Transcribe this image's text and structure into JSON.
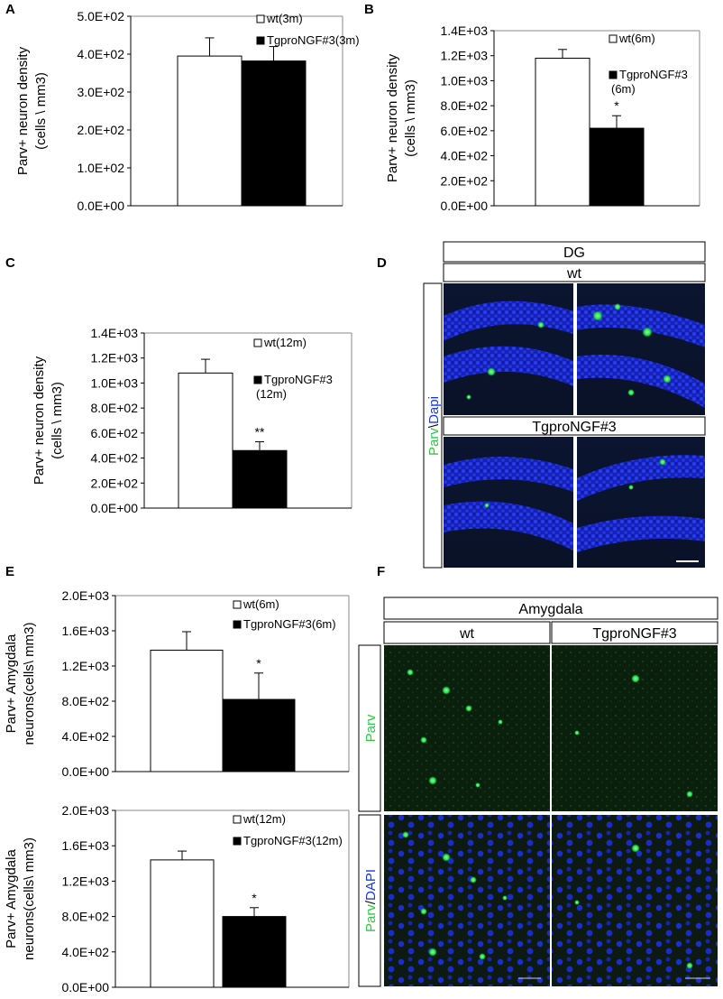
{
  "panels": {
    "A": "A",
    "B": "B",
    "C": "C",
    "D": "D",
    "E": "E",
    "F": "F"
  },
  "chart_data": [
    {
      "id": "A",
      "type": "bar",
      "ylabel": [
        "Parv+ neuron density",
        "(cells \\ mm3)"
      ],
      "ylim": [
        0,
        500
      ],
      "yticks": [
        "0.0E+00",
        "1.0E+02",
        "2.0E+02",
        "3.0E+02",
        "4.0E+02",
        "5.0E+02"
      ],
      "series": [
        {
          "name": "wt(3m)",
          "value": 395,
          "error": 48,
          "fill": "#ffffff"
        },
        {
          "name": "TgproNGF#3(3m)",
          "value": 382,
          "error": 38,
          "fill": "#000000"
        }
      ],
      "significance": ""
    },
    {
      "id": "B",
      "type": "bar",
      "ylabel": [
        "Parv+ neuron density",
        "(cells \\ mm3)"
      ],
      "ylim": [
        0,
        1400
      ],
      "yticks": [
        "0.0E+00",
        "2.0E+02",
        "4.0E+02",
        "6.0E+02",
        "8.0E+02",
        "1.0E+03",
        "1.2E+03",
        "1.4E+03"
      ],
      "series": [
        {
          "name": "wt(6m)",
          "value": 1180,
          "error": 70,
          "fill": "#ffffff"
        },
        {
          "name": "TgproNGF#3 (6m)",
          "value": 620,
          "error": 100,
          "fill": "#000000"
        }
      ],
      "significance": "*"
    },
    {
      "id": "C",
      "type": "bar",
      "ylabel": [
        "Parv+ neuron density",
        "(cells \\ mm3)"
      ],
      "ylim": [
        0,
        1400
      ],
      "yticks": [
        "0.0E+00",
        "2.0E+02",
        "4.0E+02",
        "6.0E+02",
        "8.0E+02",
        "1.0E+03",
        "1.2E+03",
        "1.4E+03"
      ],
      "series": [
        {
          "name": "wt(12m)",
          "value": 1080,
          "error": 110,
          "fill": "#ffffff"
        },
        {
          "name": "TgproNGF#3 (12m)",
          "value": 460,
          "error": 70,
          "fill": "#000000"
        }
      ],
      "significance": "**"
    },
    {
      "id": "E1",
      "type": "bar",
      "ylabel": [
        "Parv+ Amygdala",
        "neurons(cells\\ mm3)"
      ],
      "ylim": [
        0,
        2000
      ],
      "yticks": [
        "0.0E+00",
        "4.0E+02",
        "8.0E+02",
        "1.2E+03",
        "1.6E+03",
        "2.0E+03"
      ],
      "series": [
        {
          "name": "wt(6m)",
          "value": 1380,
          "error": 210,
          "fill": "#ffffff"
        },
        {
          "name": "TgproNGF#3(6m)",
          "value": 820,
          "error": 300,
          "fill": "#000000"
        }
      ],
      "significance": "*"
    },
    {
      "id": "E2",
      "type": "bar",
      "ylabel": [
        "Parv+ Amygdala",
        "neurons(cells\\ mm3)"
      ],
      "ylim": [
        0,
        2000
      ],
      "yticks": [
        "0.0E+00",
        "4.0E+02",
        "8.0E+02",
        "1.2E+03",
        "1.6E+03",
        "2.0E+03"
      ],
      "series": [
        {
          "name": "wt(12m)",
          "value": 1440,
          "error": 100,
          "fill": "#ffffff"
        },
        {
          "name": "TgproNGF#3(12m)",
          "value": 800,
          "error": 100,
          "fill": "#000000"
        }
      ],
      "significance": "*"
    }
  ],
  "micrograph_D": {
    "region": "DG",
    "row1": "wt",
    "row2": "TgproNGF#3",
    "stain_a": "Parv",
    "stain_sep": "\\",
    "stain_b": "Dapi",
    "colors": {
      "parv": "#00cc33",
      "dapi": "#1a2bd6"
    }
  },
  "micrograph_F": {
    "region": "Amygdala",
    "col1": "wt",
    "col2": "TgproNGF#3",
    "row1_stain": "Parv",
    "row2_stain_a": "Parv",
    "row2_stain_sep": "/",
    "row2_stain_b": "DAPI"
  }
}
